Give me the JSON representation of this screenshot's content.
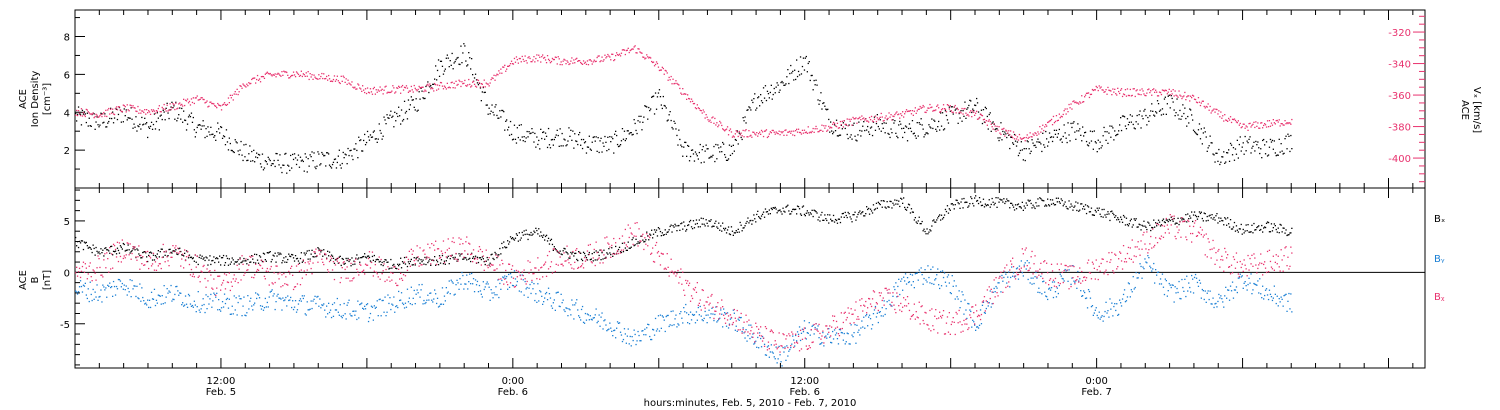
{
  "chart_data": {
    "type": "scatter",
    "xlabel": "hours:minutes, Feb.  5, 2010 - Feb.  7, 2010",
    "x_axis": {
      "range_hours": [
        0,
        55.5
      ],
      "ticks": [
        {
          "hour": 6,
          "time": "12:00",
          "date": "Feb. 5"
        },
        {
          "hour": 18,
          "time": "0:00",
          "date": "Feb. 6"
        },
        {
          "hour": 30,
          "time": "12:00",
          "date": "Feb. 6"
        },
        {
          "hour": 42,
          "time": "0:00",
          "date": "Feb. 7"
        }
      ]
    },
    "panels": [
      {
        "name": "density-velocity",
        "left_axis": {
          "label_lines": [
            "ACE",
            "Ion Density",
            "[cm⁻³]"
          ],
          "ylim": [
            0,
            9.4
          ],
          "ticks": [
            "2",
            "4",
            "6",
            "8"
          ],
          "color": "#000000"
        },
        "right_axis": {
          "label_lines": [
            "ACE",
            "Vₓ [km/s]"
          ],
          "ylim": [
            -419,
            -306
          ],
          "ticks": [
            "-320",
            "-340",
            "-360",
            "-380",
            "-400"
          ],
          "color": "#e8326e"
        },
        "series": [
          {
            "axis": "left",
            "color": "#000000",
            "hours": [
              0,
              1,
              2,
              3,
              4,
              5,
              6,
              7,
              8,
              9,
              10,
              11,
              12,
              13,
              14,
              15,
              16,
              17,
              17.5,
              18,
              19,
              20,
              21,
              22,
              23,
              24,
              25,
              26,
              27,
              28,
              29,
              30,
              31,
              32,
              33,
              34,
              35,
              36,
              37,
              38,
              39,
              40,
              41,
              42,
              43,
              44,
              45,
              46,
              47,
              48,
              49,
              50
            ],
            "values": [
              3.8,
              3.5,
              4,
              3.2,
              4.2,
              3.2,
              2.9,
              1.8,
              1.4,
              1.3,
              1.5,
              1.6,
              2.5,
              3.6,
              4.5,
              6.5,
              7.2,
              4.2,
              3.7,
              3,
              2.6,
              2.8,
              2.4,
              2.3,
              3.2,
              4.8,
              2,
              1.8,
              2,
              4.8,
              5.5,
              6.8,
              3.5,
              3,
              3.4,
              3,
              3.3,
              3.8,
              4.3,
              3,
              2,
              2.6,
              3.1,
              2.5,
              3.3,
              3.8,
              4.5,
              3.5,
              1.6,
              2.3,
              2.1,
              2.5
            ]
          },
          {
            "axis": "right",
            "color": "#e8326e",
            "hours": [
              0,
              1,
              2,
              3,
              4,
              5,
              6,
              7,
              8,
              9,
              10,
              11,
              12,
              13,
              14,
              15,
              16,
              17,
              18,
              19,
              20,
              21,
              22,
              23,
              24,
              25,
              26,
              27,
              28,
              29,
              30,
              31,
              32,
              33,
              34,
              35,
              36,
              37,
              38,
              39,
              40,
              41,
              42,
              43,
              44,
              45,
              46,
              47,
              48,
              49,
              50
            ],
            "values": [
              -370,
              -372,
              -368,
              -370,
              -367,
              -362,
              -368,
              -352,
              -347,
              -346,
              -348,
              -350,
              -357,
              -356,
              -356,
              -354,
              -352,
              -352,
              -338,
              -336,
              -338,
              -338,
              -336,
              -330,
              -342,
              -358,
              -374,
              -384,
              -384,
              -384,
              -382,
              -380,
              -376,
              -374,
              -372,
              -368,
              -368,
              -372,
              -382,
              -388,
              -378,
              -366,
              -356,
              -358,
              -358,
              -358,
              -362,
              -372,
              -380,
              -378,
              -376
            ]
          }
        ]
      },
      {
        "name": "magnetic-field",
        "left_axis": {
          "label_lines": [
            "ACE",
            "B",
            "[nT]"
          ],
          "ylim": [
            -9.3,
            8.2
          ],
          "ticks": [
            "5",
            "0",
            "-5"
          ],
          "zero_line": true,
          "color": "#000000"
        },
        "series": [
          {
            "name": "Bx",
            "color": "#000000",
            "hours": [
              0,
              1,
              2,
              3,
              4,
              5,
              6,
              7,
              8,
              9,
              10,
              11,
              12,
              13,
              14,
              15,
              16,
              17,
              18,
              19,
              20,
              21,
              22,
              23,
              24,
              25,
              26,
              27,
              28,
              29,
              30,
              31,
              32,
              33,
              34,
              35,
              36,
              37,
              38,
              39,
              40,
              41,
              42,
              43,
              44,
              45,
              46,
              47,
              48,
              49,
              50
            ],
            "values": [
              3,
              2,
              2.4,
              1.5,
              2.2,
              1.3,
              1.2,
              1.2,
              1.6,
              1.3,
              2,
              1,
              1.5,
              0.8,
              1.3,
              1.2,
              1.5,
              1.2,
              3.5,
              3.9,
              2,
              1.5,
              2,
              3,
              4,
              4.5,
              5,
              4,
              5.5,
              6.2,
              6,
              5.2,
              5.5,
              6.5,
              7,
              4,
              6.5,
              7,
              6.8,
              6.5,
              7,
              6.5,
              6,
              5.2,
              4.5,
              5,
              5.5,
              5.3,
              4.2,
              4.5,
              4
            ]
          },
          {
            "name": "By",
            "color": "#1a7fd4",
            "hours": [
              0,
              1,
              2,
              3,
              4,
              5,
              6,
              7,
              8,
              9,
              10,
              11,
              12,
              13,
              14,
              15,
              16,
              17,
              18,
              19,
              20,
              21,
              22,
              23,
              24,
              25,
              26,
              27,
              28,
              29,
              30,
              31,
              32,
              33,
              34,
              35,
              36,
              37,
              38,
              39,
              40,
              41,
              42,
              43,
              44,
              45,
              46,
              47,
              48,
              49,
              50
            ],
            "values": [
              -1.5,
              -2,
              -1,
              -2.5,
              -2,
              -2.8,
              -3,
              -3.2,
              -2.5,
              -3,
              -3.2,
              -3.5,
              -3.8,
              -3,
              -2,
              -2.5,
              -0.5,
              -2,
              -0.5,
              -2,
              -3,
              -4,
              -5,
              -6.5,
              -5,
              -4,
              -4,
              -4.5,
              -6.5,
              -8.2,
              -5.5,
              -6.3,
              -6,
              -4,
              -1,
              0,
              -1,
              -5,
              -1,
              0.5,
              -2,
              0,
              -4,
              -3,
              1,
              -2,
              -1,
              -3,
              -0.5,
              -2,
              -3
            ]
          },
          {
            "name": "Bz",
            "color": "#e8326e",
            "hours": [
              0,
              1,
              2,
              3,
              4,
              5,
              6,
              7,
              8,
              9,
              10,
              11,
              12,
              13,
              14,
              15,
              16,
              17,
              18,
              19,
              20,
              21,
              22,
              23,
              24,
              25,
              26,
              27,
              28,
              29,
              30,
              31,
              32,
              33,
              34,
              35,
              36,
              37,
              38,
              39,
              40,
              41,
              42,
              43,
              44,
              45,
              46,
              47,
              48,
              49,
              50
            ],
            "values": [
              0,
              0.5,
              2.5,
              1,
              2,
              0.5,
              -1.5,
              1,
              -0.2,
              -0.5,
              1.5,
              0,
              1.2,
              -0.5,
              1.5,
              2,
              2.5,
              1,
              -0.5,
              0.5,
              1.5,
              1.5,
              2.5,
              4,
              1.5,
              -1,
              -3,
              -4,
              -6,
              -7,
              -6.5,
              -5.5,
              -4,
              -2.5,
              -3,
              -4.5,
              -5,
              -4,
              -1,
              1.5,
              0,
              -0.5,
              0.5,
              1.5,
              3,
              4.5,
              4,
              1.5,
              0.5,
              1,
              1.5
            ]
          }
        ],
        "legend": [
          "Bₓ",
          "Bᵧ",
          "Bᵪ"
        ],
        "legend_placement": "right"
      }
    ]
  }
}
